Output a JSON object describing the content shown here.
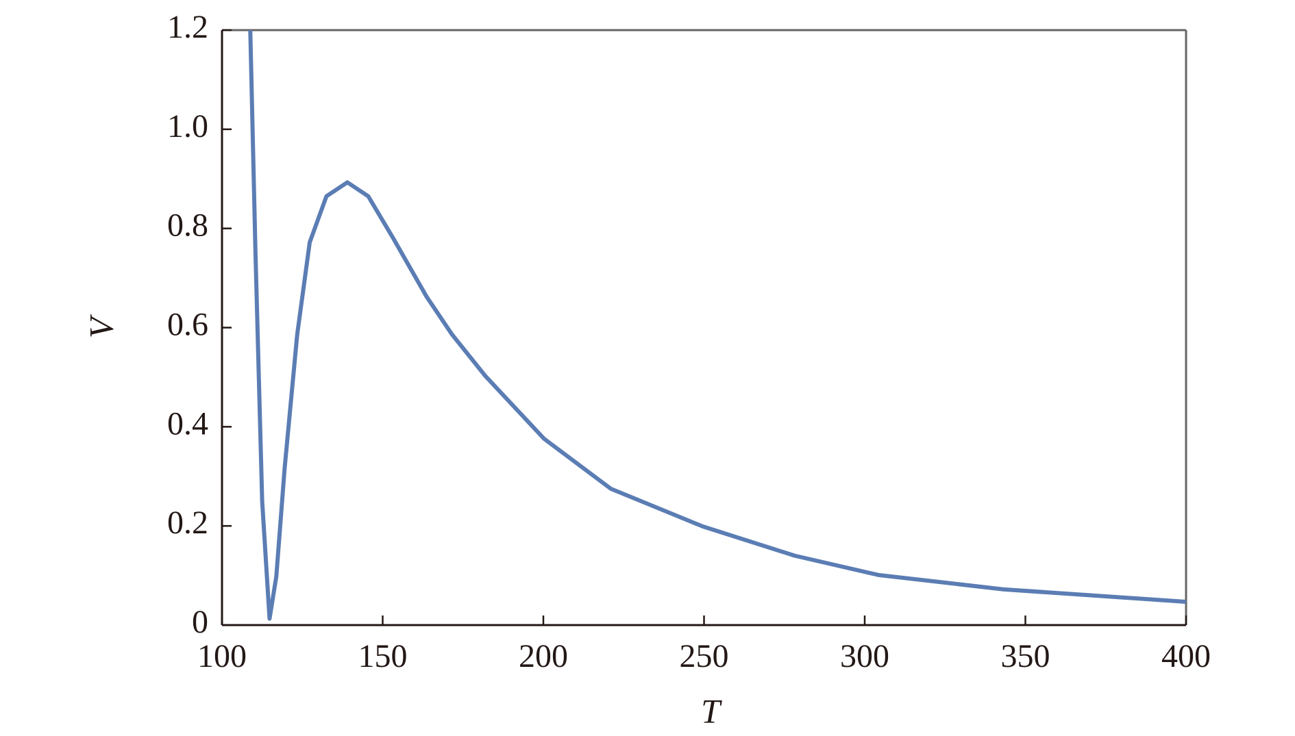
{
  "chart_data": {
    "type": "line",
    "x_label": "T",
    "y_label": "V",
    "x": [
      108.8,
      110.4,
      112.5,
      114.8,
      116.9,
      119.5,
      123.4,
      127.3,
      132.5,
      139,
      145.5,
      153.3,
      163.7,
      171.6,
      182,
      200.2,
      221,
      249.6,
      278.2,
      304.3,
      343.3,
      400
    ],
    "series": [
      {
        "name": "V",
        "color": "#5b7db4",
        "values": [
          1.2,
          0.755,
          0.25,
          0.013,
          0.098,
          0.317,
          0.586,
          0.772,
          0.865,
          0.893,
          0.865,
          0.78,
          0.662,
          0.586,
          0.502,
          0.376,
          0.275,
          0.199,
          0.14,
          0.101,
          0.072,
          0.047
        ]
      }
    ],
    "xlim": [
      100,
      400
    ],
    "xticks": [
      100,
      150,
      200,
      250,
      300,
      350,
      400
    ],
    "ylim": [
      0,
      1.2
    ],
    "yticks": [
      0,
      0.2,
      0.4,
      0.6,
      0.8,
      {
        "value": 1.0,
        "label": "1.0"
      },
      1.2
    ],
    "grid": false
  }
}
